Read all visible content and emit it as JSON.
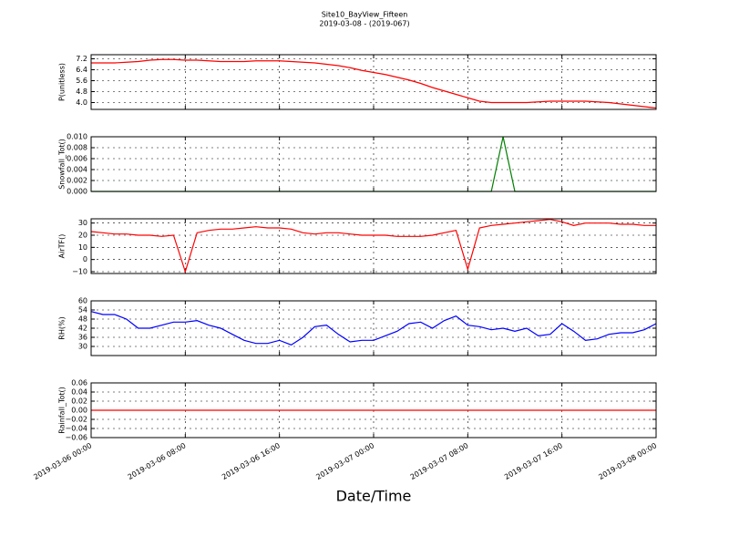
{
  "title": "Site10_BayView_Fifteen",
  "subtitle": "2019-03-08 - (2019-067)",
  "xlabel": "Date/Time",
  "x": [
    "2019-03-06 00:00",
    "2019-03-06 01:00",
    "2019-03-06 02:00",
    "2019-03-06 03:00",
    "2019-03-06 04:00",
    "2019-03-06 05:00",
    "2019-03-06 06:00",
    "2019-03-06 07:00",
    "2019-03-06 08:00",
    "2019-03-06 09:00",
    "2019-03-06 10:00",
    "2019-03-06 11:00",
    "2019-03-06 12:00",
    "2019-03-06 13:00",
    "2019-03-06 14:00",
    "2019-03-06 15:00",
    "2019-03-06 16:00",
    "2019-03-06 17:00",
    "2019-03-06 18:00",
    "2019-03-06 19:00",
    "2019-03-06 20:00",
    "2019-03-06 21:00",
    "2019-03-06 22:00",
    "2019-03-06 23:00",
    "2019-03-07 00:00",
    "2019-03-07 01:00",
    "2019-03-07 02:00",
    "2019-03-07 03:00",
    "2019-03-07 04:00",
    "2019-03-07 05:00",
    "2019-03-07 06:00",
    "2019-03-07 07:00",
    "2019-03-07 08:00",
    "2019-03-07 09:00",
    "2019-03-07 10:00",
    "2019-03-07 11:00",
    "2019-03-07 12:00",
    "2019-03-07 13:00",
    "2019-03-07 14:00",
    "2019-03-07 15:00",
    "2019-03-07 16:00",
    "2019-03-07 17:00",
    "2019-03-07 18:00",
    "2019-03-07 19:00",
    "2019-03-07 20:00",
    "2019-03-07 21:00",
    "2019-03-07 22:00",
    "2019-03-07 23:00",
    "2019-03-08 00:00"
  ],
  "xlim": [
    "2019-03-06 00:00",
    "2019-03-08 00:00"
  ],
  "xticks": [
    "2019-03-06 00:00",
    "2019-03-06 08:00",
    "2019-03-06 16:00",
    "2019-03-07 00:00",
    "2019-03-07 08:00",
    "2019-03-07 16:00",
    "2019-03-08 00:00"
  ],
  "grid": true,
  "chart_data": [
    {
      "type": "line",
      "ylabel": "P(unitless)",
      "color": "#ff0000",
      "ylim": [
        3.5,
        7.5
      ],
      "yticks": [
        {
          "value": 4,
          "label": "4.0"
        },
        4.8,
        5.6,
        6.4,
        7.2
      ],
      "values": [
        6.9,
        6.9,
        6.9,
        6.95,
        7.0,
        7.1,
        7.15,
        7.15,
        7.1,
        7.1,
        7.05,
        7.0,
        7.0,
        7.0,
        7.05,
        7.05,
        7.05,
        7.0,
        6.95,
        6.9,
        6.8,
        6.7,
        6.55,
        6.35,
        6.2,
        6.05,
        5.85,
        5.65,
        5.4,
        5.1,
        4.85,
        4.6,
        4.35,
        4.1,
        4.0,
        4.0,
        4.0,
        4.0,
        4.05,
        4.1,
        4.1,
        4.1,
        4.1,
        4.05,
        4.0,
        3.9,
        3.8,
        3.7,
        3.6
      ]
    },
    {
      "type": "line",
      "ylabel": "Snowfall_Tot()",
      "color": "#007f00",
      "ylim": [
        0,
        0.01
      ],
      "yticks": [
        {
          "value": 0,
          "label": "0.000"
        },
        {
          "value": 0.002,
          "label": "0.002"
        },
        {
          "value": 0.004,
          "label": "0.004"
        },
        {
          "value": 0.006,
          "label": "0.006"
        },
        {
          "value": 0.008,
          "label": "0.008"
        },
        {
          "value": 0.01,
          "label": "0.010"
        }
      ],
      "values": [
        0,
        0,
        0,
        0,
        0,
        0,
        0,
        0,
        0,
        0,
        0,
        0,
        0,
        0,
        0,
        0,
        0,
        0,
        0,
        0,
        0,
        0,
        0,
        0,
        0,
        0,
        0,
        0,
        0,
        0,
        0,
        0,
        0,
        0,
        0,
        0.01,
        0,
        0,
        0,
        0,
        0,
        0,
        0,
        0,
        0,
        0,
        0,
        0,
        0
      ]
    },
    {
      "type": "line",
      "ylabel": "AirTF()",
      "color": "#ff0000",
      "ylim": [
        -11.5,
        33.5
      ],
      "yticks": [
        {
          "value": -10,
          "label": "−10"
        },
        0,
        10,
        20,
        30
      ],
      "values": [
        23,
        22,
        21,
        21,
        20,
        20,
        19,
        20,
        -10,
        22,
        24,
        25,
        25,
        26,
        27,
        26,
        26,
        25,
        22,
        21,
        22,
        22,
        21,
        20,
        20,
        20,
        19,
        19,
        19,
        20,
        22,
        24,
        -8,
        26,
        28,
        29,
        30,
        31,
        32,
        33,
        31,
        28,
        30,
        30,
        30,
        29,
        29,
        28,
        28
      ]
    },
    {
      "type": "line",
      "ylabel": "RH(%)",
      "color": "#0000ff",
      "ylim": [
        24,
        60
      ],
      "yticks": [
        30,
        36,
        42,
        48,
        54,
        60
      ],
      "values": [
        53,
        51,
        51,
        48,
        42,
        42,
        44,
        46,
        46,
        47,
        44,
        42,
        38,
        34,
        32,
        32,
        34,
        31,
        36,
        43,
        44,
        38,
        33,
        34,
        34,
        37,
        40,
        45,
        46,
        42,
        47,
        50,
        44,
        43,
        41,
        42,
        40,
        42,
        37,
        38,
        45,
        40,
        34,
        35,
        38,
        39,
        39,
        41,
        45
      ]
    },
    {
      "type": "line",
      "ylabel": "Rainfall_Tot()",
      "color": "#ff0000",
      "ylim": [
        -0.06,
        0.06
      ],
      "yticks": [
        {
          "value": -0.06,
          "label": "−0.06"
        },
        {
          "value": -0.04,
          "label": "−0.04"
        },
        {
          "value": -0.02,
          "label": "−0.02"
        },
        {
          "value": 0,
          "label": "0.00"
        },
        {
          "value": 0.02,
          "label": "0.02"
        },
        {
          "value": 0.04,
          "label": "0.04"
        },
        {
          "value": 0.06,
          "label": "0.06"
        }
      ],
      "values": [
        0,
        0,
        0,
        0,
        0,
        0,
        0,
        0,
        0,
        0,
        0,
        0,
        0,
        0,
        0,
        0,
        0,
        0,
        0,
        0,
        0,
        0,
        0,
        0,
        0,
        0,
        0,
        0,
        0,
        0,
        0,
        0,
        0,
        0,
        0,
        0,
        0,
        0,
        0,
        0,
        0,
        0,
        0,
        0,
        0,
        0,
        0,
        0,
        0
      ]
    }
  ]
}
